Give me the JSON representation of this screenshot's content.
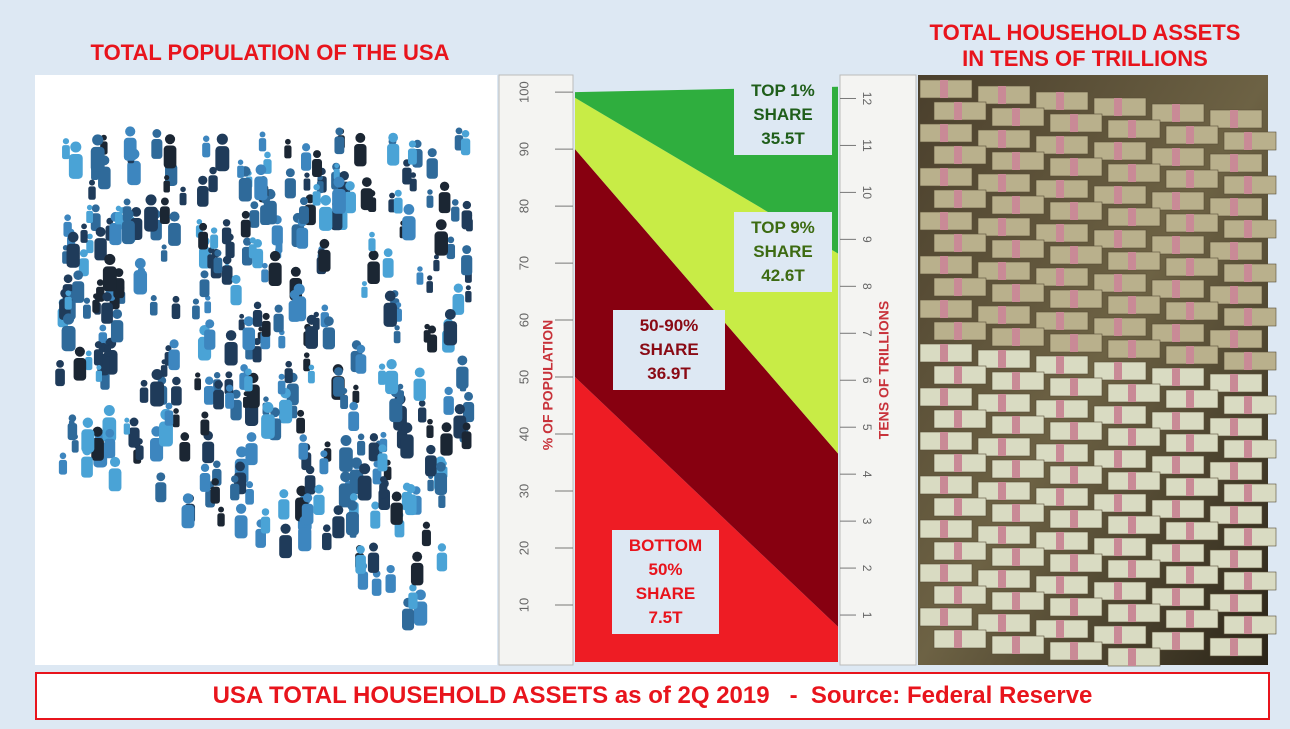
{
  "left_title": "TOTAL POPULATION OF THE USA",
  "right_title": [
    "TOTAL HOUSEHOLD ASSETS",
    "IN TENS OF TRILLIONS"
  ],
  "footer": "USA TOTAL HOUSEHOLD ASSETS as of 2Q 2019   -  Source: Federal Reserve",
  "chart_data": {
    "type": "wealth-bands",
    "ylabel": "% OF POPULATION",
    "ylim": [
      0,
      103
    ],
    "yticks": [
      10,
      20,
      30,
      40,
      50,
      60,
      70,
      80,
      90,
      100
    ],
    "y2label": "TENS OF TRILLIONS",
    "y2lim": [
      0,
      12.5
    ],
    "y2ticks": [
      1,
      2,
      3,
      4,
      5,
      6,
      7,
      8,
      9,
      10,
      11,
      12
    ],
    "share_label": "SHARE",
    "series": [
      {
        "name": "BOTTOM 50%",
        "color": "#ee1c24",
        "text_color": "#e8141c",
        "population": 50,
        "values": [
          0.75
        ],
        "value_labels": [
          "7.5T"
        ]
      },
      {
        "name": "50-90%",
        "color": "#870010",
        "text_color": "#8a0a14",
        "population": 40,
        "values": [
          3.69
        ],
        "value_labels": [
          "36.9T"
        ]
      },
      {
        "name": "TOP 9%",
        "color": "#c8ec46",
        "text_color": "#3d6b12",
        "population": 9,
        "values": [
          4.26
        ],
        "value_labels": [
          "42.6T"
        ]
      },
      {
        "name": "TOP 1%",
        "color": "#2fae3e",
        "text_color": "#1f5e1a",
        "population": 1,
        "values": [
          3.55
        ],
        "value_labels": [
          "35.5T"
        ]
      }
    ]
  }
}
